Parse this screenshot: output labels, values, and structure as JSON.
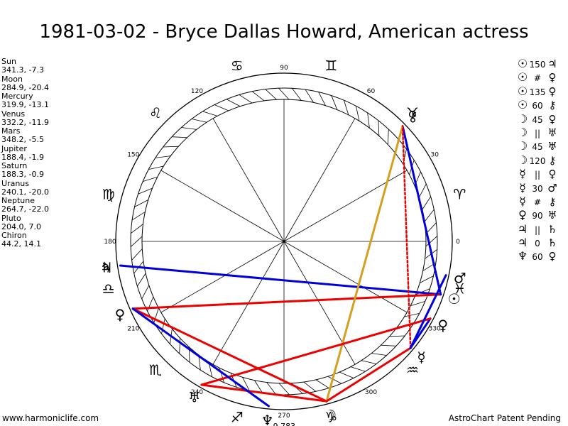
{
  "title": "1981-03-02 - Bryce Dallas Howard, American actress",
  "footer": {
    "left": "www.harmoniclife.com",
    "right": "AstroChart Patent Pending"
  },
  "positions": [
    {
      "name": "Sun",
      "coords": "341.3, -7.3"
    },
    {
      "name": "Moon",
      "coords": "284.9, -20.4"
    },
    {
      "name": "Mercury",
      "coords": "319.9, -13.1"
    },
    {
      "name": "Venus",
      "coords": "332.2, -11.9"
    },
    {
      "name": "Mars",
      "coords": "348.2, -5.5"
    },
    {
      "name": "Jupiter",
      "coords": "188.4, -1.9"
    },
    {
      "name": "Saturn",
      "coords": "188.3, -0.9"
    },
    {
      "name": "Uranus",
      "coords": "240.1, -20.0"
    },
    {
      "name": "Neptune",
      "coords": "264.7, -22.0"
    },
    {
      "name": "Pluto",
      "coords": "204.0, 7.0"
    },
    {
      "name": "Chiron",
      "coords": "44.2, 14.1"
    }
  ],
  "aspects": [
    {
      "p1": "☉",
      "aspect": "150",
      "p2": "♃"
    },
    {
      "p1": "☉",
      "aspect": "#",
      "p2": "♀"
    },
    {
      "p1": "☉",
      "aspect": "135",
      "p2": "♀"
    },
    {
      "p1": "☉",
      "aspect": "60",
      "p2": "⚷"
    },
    {
      "p1": "☽",
      "aspect": "45",
      "p2": "♀"
    },
    {
      "p1": "☽",
      "aspect": "||",
      "p2": "♅"
    },
    {
      "p1": "☽",
      "aspect": "45",
      "p2": "♅"
    },
    {
      "p1": "☽",
      "aspect": "120",
      "p2": "⚷"
    },
    {
      "p1": "☿",
      "aspect": "||",
      "p2": "♀"
    },
    {
      "p1": "☿",
      "aspect": "30",
      "p2": "♂"
    },
    {
      "p1": "☿",
      "aspect": "#",
      "p2": "⚷"
    },
    {
      "p1": "♀",
      "aspect": "90",
      "p2": "♅"
    },
    {
      "p1": "♃",
      "aspect": "||",
      "p2": "♄"
    },
    {
      "p1": "♃",
      "aspect": "0",
      "p2": "♄"
    },
    {
      "p1": "♆",
      "aspect": "60",
      "p2": "♀"
    }
  ],
  "wheel": {
    "degree_labels": [
      "0",
      "30",
      "60",
      "90",
      "120",
      "150",
      "180",
      "210",
      "240",
      "270",
      "300",
      "330"
    ],
    "signs": [
      {
        "glyph": "♈",
        "deg": 15
      },
      {
        "glyph": "♉",
        "deg": 45
      },
      {
        "glyph": "♊",
        "deg": 75
      },
      {
        "glyph": "♋",
        "deg": 105
      },
      {
        "glyph": "♌",
        "deg": 135
      },
      {
        "glyph": "♍",
        "deg": 165
      },
      {
        "glyph": "♎",
        "deg": 195
      },
      {
        "glyph": "♏",
        "deg": 225
      },
      {
        "glyph": "♐",
        "deg": 255
      },
      {
        "glyph": "♑",
        "deg": 285
      },
      {
        "glyph": "♒",
        "deg": 315
      },
      {
        "glyph": "♓",
        "deg": 345
      }
    ],
    "planets": [
      {
        "id": "sun",
        "glyph": "☉",
        "deg": 341.3
      },
      {
        "id": "moon",
        "glyph": "☽",
        "deg": 284.9
      },
      {
        "id": "mercury",
        "glyph": "☿",
        "deg": 319.9
      },
      {
        "id": "venus",
        "glyph": "♀",
        "deg": 332.2
      },
      {
        "id": "mars",
        "glyph": "♂",
        "deg": 348.2
      },
      {
        "id": "jupiter",
        "glyph": "♃",
        "deg": 188.4
      },
      {
        "id": "saturn",
        "glyph": "♄",
        "deg": 188.3
      },
      {
        "id": "uranus",
        "glyph": "♅",
        "deg": 240.1
      },
      {
        "id": "neptune",
        "glyph": "♆",
        "deg": 264.7
      },
      {
        "id": "pluto",
        "glyph": "♀",
        "deg": 204.0
      },
      {
        "id": "chiron",
        "glyph": "⚷",
        "deg": 44.2
      }
    ],
    "neptune_note": "9,783",
    "aspect_lines": [
      {
        "a": "sun",
        "b": "jupiter",
        "color": "#0000dd",
        "style": "solid"
      },
      {
        "a": "sun",
        "b": "pluto",
        "color": "#ee0000",
        "style": "solid"
      },
      {
        "a": "sun",
        "b": "pluto",
        "color": "#ee0000",
        "style": "dotted"
      },
      {
        "a": "sun",
        "b": "chiron",
        "color": "#0000dd",
        "style": "solid"
      },
      {
        "a": "moon",
        "b": "pluto",
        "color": "#ee0000",
        "style": "solid"
      },
      {
        "a": "moon",
        "b": "uranus",
        "color": "#ee0000",
        "style": "solid"
      },
      {
        "a": "moon",
        "b": "chiron",
        "color": "#d4a020",
        "style": "solid"
      },
      {
        "a": "moon",
        "b": "mercury",
        "color": "#ee0000",
        "style": "solid"
      },
      {
        "a": "mercury",
        "b": "venus",
        "color": "#0000dd",
        "style": "solid"
      },
      {
        "a": "mercury",
        "b": "chiron",
        "color": "#ee0000",
        "style": "dotted"
      },
      {
        "a": "venus",
        "b": "uranus",
        "color": "#ee0000",
        "style": "solid"
      },
      {
        "a": "neptune",
        "b": "pluto",
        "color": "#0000dd",
        "style": "solid"
      },
      {
        "a": "mars",
        "b": "mercury",
        "color": "#0000dd",
        "style": "solid"
      }
    ]
  }
}
